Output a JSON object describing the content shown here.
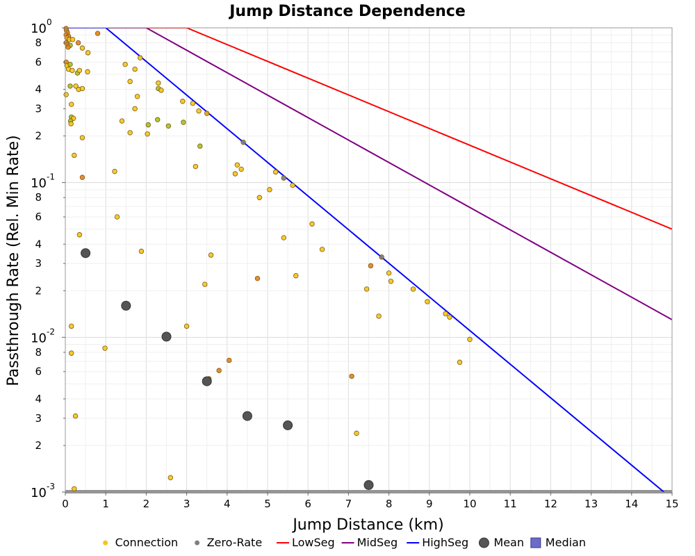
{
  "chart_data": {
    "type": "scatter",
    "title": "Jump Distance Dependence",
    "xlabel": "Jump Distance (km)",
    "ylabel": "Passthrough Rate (Rel. Min Rate)",
    "xlim": [
      0,
      15
    ],
    "ylim": [
      0.001,
      1
    ],
    "y_scale": "log",
    "grid": true,
    "x_ticks": [
      "0",
      "1",
      "2",
      "3",
      "4",
      "5",
      "6",
      "7",
      "8",
      "9",
      "10",
      "11",
      "12",
      "13",
      "14",
      "15"
    ],
    "y_major_ticks": [
      {
        "base": "10",
        "exp": "-3",
        "value": 0.001
      },
      {
        "base": "10",
        "exp": "-2",
        "value": 0.01
      },
      {
        "base": "10",
        "exp": "-1",
        "value": 0.1
      },
      {
        "base": "10",
        "exp": "0",
        "value": 1
      }
    ],
    "y_minor_labels": [
      "2",
      "3",
      "4",
      "6",
      "8"
    ],
    "legend_position": "bottom",
    "legend": [
      {
        "label": "Connection",
        "marker": "dot",
        "color": "#f5c518"
      },
      {
        "label": "Zero-Rate",
        "marker": "dot",
        "color": "#808080"
      },
      {
        "label": "LowSeg",
        "marker": "line",
        "color": "#ff0000"
      },
      {
        "label": "MidSeg",
        "marker": "line",
        "color": "#800080"
      },
      {
        "label": "HighSeg",
        "marker": "line",
        "color": "#0000ff"
      },
      {
        "label": "Mean",
        "marker": "bigdot",
        "color": "#555555"
      },
      {
        "label": "Median",
        "marker": "square",
        "color": "#6b6bc8"
      }
    ],
    "series": [
      {
        "name": "LowSeg",
        "type": "line",
        "color": "#ff0000",
        "x": [
          0,
          3.0,
          15
        ],
        "y": [
          1,
          1,
          0.05
        ]
      },
      {
        "name": "MidSeg",
        "type": "line",
        "color": "#800080",
        "x": [
          0,
          2.0,
          15
        ],
        "y": [
          1,
          1,
          0.013
        ]
      },
      {
        "name": "HighSeg",
        "type": "line",
        "color": "#0000ff",
        "x": [
          0,
          1.0,
          14.8
        ],
        "y": [
          1,
          1,
          0.001
        ]
      },
      {
        "name": "Mean",
        "type": "scatter",
        "color": "#555555",
        "x": [
          0.5,
          1.5,
          2.5,
          3.5,
          4.5,
          5.5,
          7.5
        ],
        "y": [
          0.035,
          0.016,
          0.0101,
          0.0052,
          0.0031,
          0.0027,
          0.00111
        ]
      },
      {
        "name": "Connection",
        "type": "scatter",
        "color": "#f5c518",
        "points": [
          [
            0.02,
            0.99,
            "#e8801c"
          ],
          [
            0.03,
            0.96,
            "#e8801c"
          ],
          [
            0.05,
            0.93,
            "#e8801c"
          ],
          [
            0.02,
            0.9,
            "#e8801c"
          ],
          [
            0.08,
            0.88,
            "#e8801c"
          ],
          [
            0.04,
            0.86,
            "#e8a020"
          ],
          [
            0.1,
            0.84,
            "#f5c518"
          ],
          [
            0.18,
            0.84,
            "#f5c518"
          ],
          [
            0.02,
            0.8,
            "#e8801c"
          ],
          [
            0.06,
            0.78,
            "#e8801c"
          ],
          [
            0.12,
            0.77,
            "#a8c020"
          ],
          [
            0.07,
            0.75,
            "#e8801c"
          ],
          [
            0.32,
            0.8,
            "#e8801c"
          ],
          [
            0.42,
            0.74,
            "#f5c518"
          ],
          [
            0.56,
            0.69,
            "#f5c518"
          ],
          [
            0.8,
            0.92,
            "#e8801c"
          ],
          [
            1.85,
            0.64,
            "#f5c518"
          ],
          [
            0.02,
            0.6,
            "#e8801c"
          ],
          [
            0.04,
            0.57,
            "#f5c518"
          ],
          [
            0.12,
            0.58,
            "#a8c020"
          ],
          [
            0.08,
            0.54,
            "#f5c518"
          ],
          [
            0.17,
            0.53,
            "#f5c518"
          ],
          [
            0.3,
            0.51,
            "#a8c020"
          ],
          [
            0.35,
            0.53,
            "#f5c518"
          ],
          [
            0.55,
            0.52,
            "#f5c518"
          ],
          [
            1.48,
            0.58,
            "#f5c518"
          ],
          [
            1.72,
            0.54,
            "#f5c518"
          ],
          [
            1.6,
            0.45,
            "#f5c518"
          ],
          [
            2.3,
            0.44,
            "#f5c518"
          ],
          [
            0.12,
            0.42,
            "#a8c020"
          ],
          [
            0.26,
            0.42,
            "#f5c518"
          ],
          [
            0.33,
            0.4,
            "#f5c518"
          ],
          [
            0.42,
            0.405,
            "#f5c518"
          ],
          [
            0.02,
            0.37,
            "#f5c518"
          ],
          [
            1.78,
            0.36,
            "#f5c518"
          ],
          [
            2.3,
            0.405,
            "#a8c020"
          ],
          [
            2.37,
            0.395,
            "#f5c518"
          ],
          [
            0.15,
            0.32,
            "#f5c518"
          ],
          [
            2.9,
            0.335,
            "#f5c518"
          ],
          [
            3.15,
            0.325,
            "#f5c518"
          ],
          [
            1.72,
            0.3,
            "#f5c518"
          ],
          [
            3.3,
            0.29,
            "#f5c518"
          ],
          [
            3.5,
            0.28,
            "#e8a020"
          ],
          [
            0.15,
            0.265,
            "#a8c020"
          ],
          [
            0.2,
            0.26,
            "#f5c518"
          ],
          [
            0.13,
            0.25,
            "#a8c020"
          ],
          [
            0.14,
            0.24,
            "#f5c518"
          ],
          [
            1.4,
            0.25,
            "#f5c518"
          ],
          [
            2.28,
            0.255,
            "#a8c020"
          ],
          [
            2.92,
            0.245,
            "#a8c020"
          ],
          [
            2.05,
            0.236,
            "#a8c020"
          ],
          [
            2.55,
            0.232,
            "#a8c020"
          ],
          [
            1.6,
            0.21,
            "#f5c518"
          ],
          [
            2.03,
            0.206,
            "#f5c518"
          ],
          [
            0.42,
            0.195,
            "#f5c518"
          ],
          [
            4.4,
            0.182,
            "#808080"
          ],
          [
            3.33,
            0.172,
            "#a8c020"
          ],
          [
            0.22,
            0.15,
            "#f5c518"
          ],
          [
            4.25,
            0.13,
            "#f5c518"
          ],
          [
            4.35,
            0.122,
            "#f5c518"
          ],
          [
            1.22,
            0.118,
            "#f5c518"
          ],
          [
            3.22,
            0.127,
            "#f5c518"
          ],
          [
            4.2,
            0.114,
            "#f5c518"
          ],
          [
            5.2,
            0.117,
            "#f5c518"
          ],
          [
            0.42,
            0.108,
            "#e8801c"
          ],
          [
            5.4,
            0.107,
            "#808080"
          ],
          [
            5.62,
            0.096,
            "#f5c518"
          ],
          [
            5.05,
            0.09,
            "#f5c518"
          ],
          [
            4.8,
            0.08,
            "#f5c518"
          ],
          [
            1.28,
            0.06,
            "#f5c518"
          ],
          [
            6.1,
            0.054,
            "#f5c518"
          ],
          [
            0.35,
            0.046,
            "#f5c518"
          ],
          [
            5.4,
            0.044,
            "#f5c518"
          ],
          [
            6.35,
            0.037,
            "#f5c518"
          ],
          [
            1.88,
            0.036,
            "#f5c518"
          ],
          [
            3.6,
            0.034,
            "#f5c518"
          ],
          [
            7.82,
            0.033,
            "#808080"
          ],
          [
            7.55,
            0.029,
            "#e8801c"
          ],
          [
            8.0,
            0.026,
            "#f5c518"
          ],
          [
            5.7,
            0.025,
            "#f5c518"
          ],
          [
            4.75,
            0.024,
            "#e8801c"
          ],
          [
            8.05,
            0.023,
            "#f5c518"
          ],
          [
            3.45,
            0.022,
            "#f5c518"
          ],
          [
            7.45,
            0.0205,
            "#f5c518"
          ],
          [
            8.6,
            0.0205,
            "#f5c518"
          ],
          [
            8.95,
            0.017,
            "#f5c518"
          ],
          [
            9.4,
            0.0142,
            "#f5c518"
          ],
          [
            9.5,
            0.0135,
            "#f5c518"
          ],
          [
            7.75,
            0.0137,
            "#f5c518"
          ],
          [
            0.15,
            0.0118,
            "#f5c518"
          ],
          [
            3.0,
            0.0118,
            "#f5c518"
          ],
          [
            10.0,
            0.0097,
            "#f5c518"
          ],
          [
            0.98,
            0.0085,
            "#f5c518"
          ],
          [
            0.15,
            0.0079,
            "#f5c518"
          ],
          [
            4.05,
            0.0071,
            "#e8801c"
          ],
          [
            9.75,
            0.0069,
            "#f5c518"
          ],
          [
            3.8,
            0.0061,
            "#e8801c"
          ],
          [
            7.08,
            0.0056,
            "#e8801c"
          ],
          [
            3.55,
            0.0054,
            "#e8801c"
          ],
          [
            0.25,
            0.0031,
            "#f5c518"
          ],
          [
            7.2,
            0.0024,
            "#f5c518"
          ],
          [
            2.6,
            0.00124,
            "#f5c518"
          ],
          [
            0.22,
            0.00105,
            "#f5c518"
          ]
        ]
      },
      {
        "name": "Zero-Rate",
        "type": "scatter",
        "color": "#808080",
        "x_range": [
          0,
          15
        ],
        "y": 0.001
      }
    ]
  }
}
